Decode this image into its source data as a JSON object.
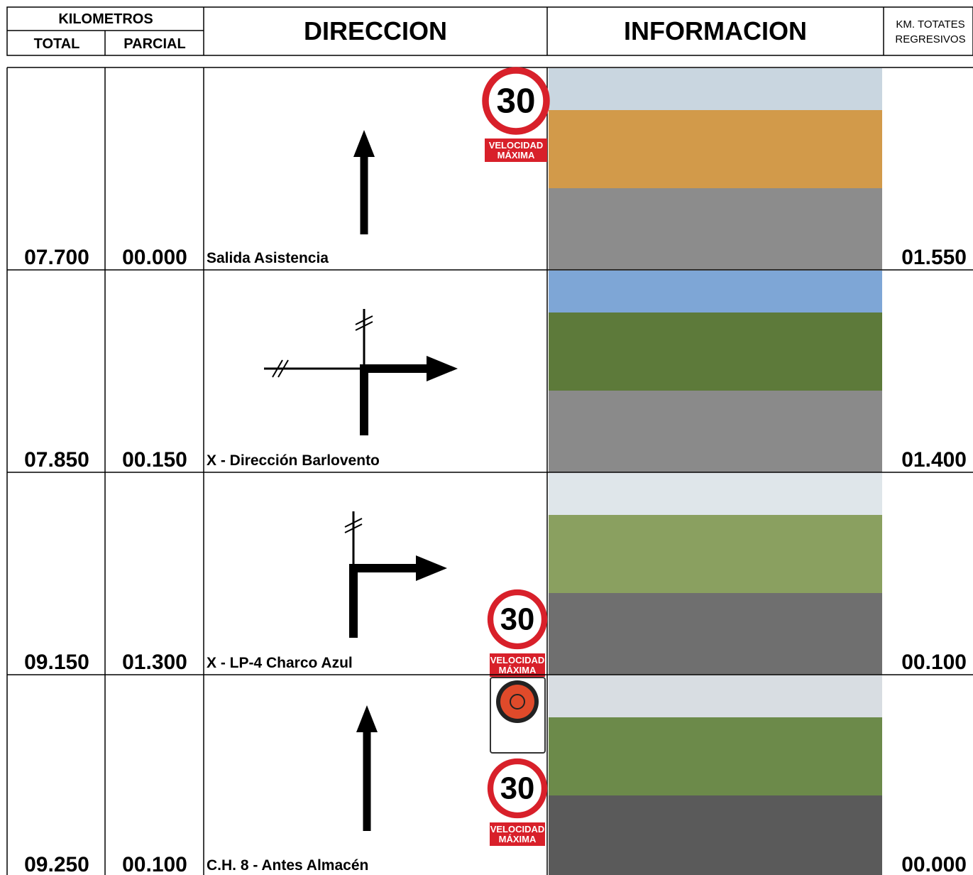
{
  "header": {
    "kilometros": "KILOMETROS",
    "total": "TOTAL",
    "parcial": "PARCIAL",
    "direccion": "DIRECCION",
    "informacion": "INFORMACION",
    "regresivos": [
      "KM. TOTATES",
      "REGRESIVOS"
    ]
  },
  "rows": [
    {
      "total": "07.700",
      "parcial": "00.000",
      "description": "Salida Asistencia",
      "regresivo": "01.550",
      "speed_sign": {
        "limit": "30",
        "caption": [
          "VELOCIDAD",
          "MÁXIMA"
        ]
      }
    },
    {
      "total": "07.850",
      "parcial": "00.150",
      "description": "X - Dirección Barlovento",
      "regresivo": "01.400"
    },
    {
      "total": "09.150",
      "parcial": "01.300",
      "description": "X - LP-4 Charco Azul",
      "regresivo": "00.100",
      "speed_sign": {
        "limit": "30",
        "caption": [
          "VELOCIDAD",
          "MÁXIMA"
        ]
      }
    },
    {
      "total": "09.250",
      "parcial": "00.100",
      "description": "C.H. 8 - Antes Almacén",
      "regresivo": "00.000",
      "speed_sign": {
        "limit": "30",
        "caption": [
          "VELOCIDAD",
          "MÁXIMA"
        ]
      }
    }
  ]
}
